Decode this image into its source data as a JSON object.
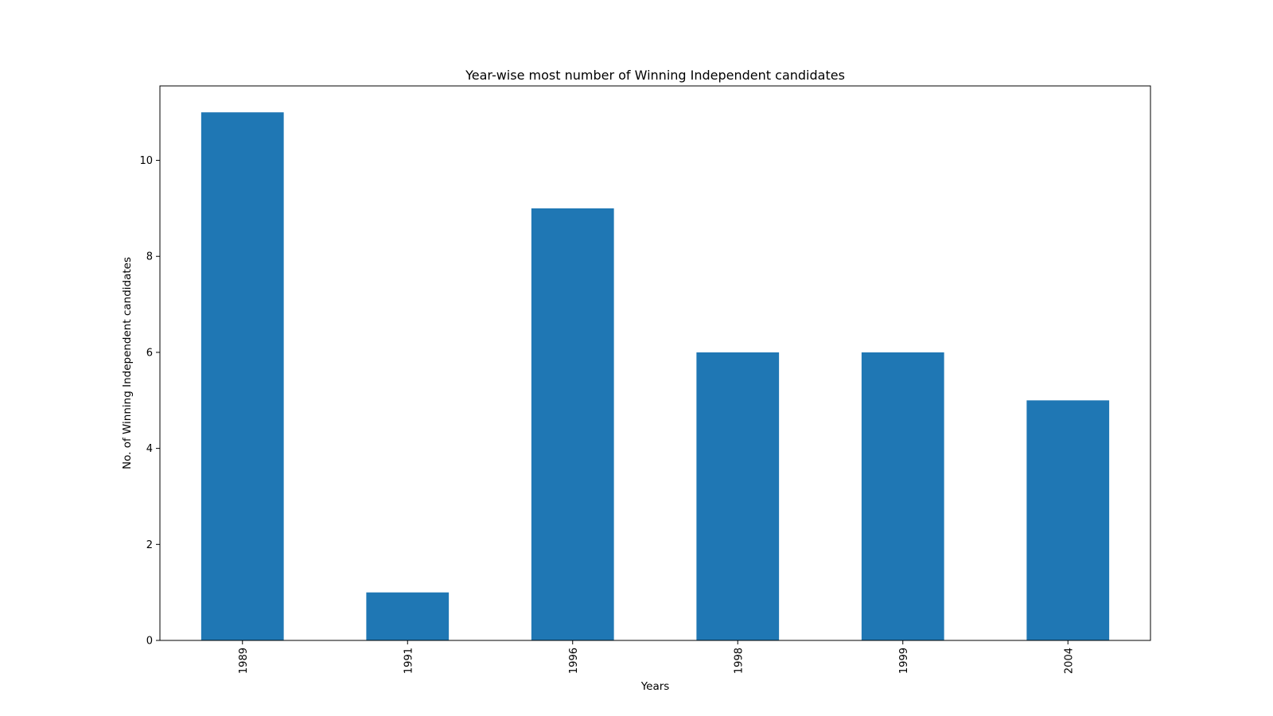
{
  "chart_data": {
    "type": "bar",
    "title": "Year-wise most number of Winning Independent candidates",
    "xlabel": "Years",
    "ylabel": "No. of Winning Independent candidates",
    "categories": [
      "1989",
      "1991",
      "1996",
      "1998",
      "1999",
      "2004"
    ],
    "values": [
      11,
      1,
      9,
      6,
      6,
      5
    ],
    "ylim": [
      0,
      11.55
    ],
    "yticks": [
      0,
      2,
      4,
      6,
      8,
      10
    ],
    "bar_color": "#1f77b4",
    "grid": false,
    "legend": "none",
    "xtick_rotation": "vertical"
  }
}
